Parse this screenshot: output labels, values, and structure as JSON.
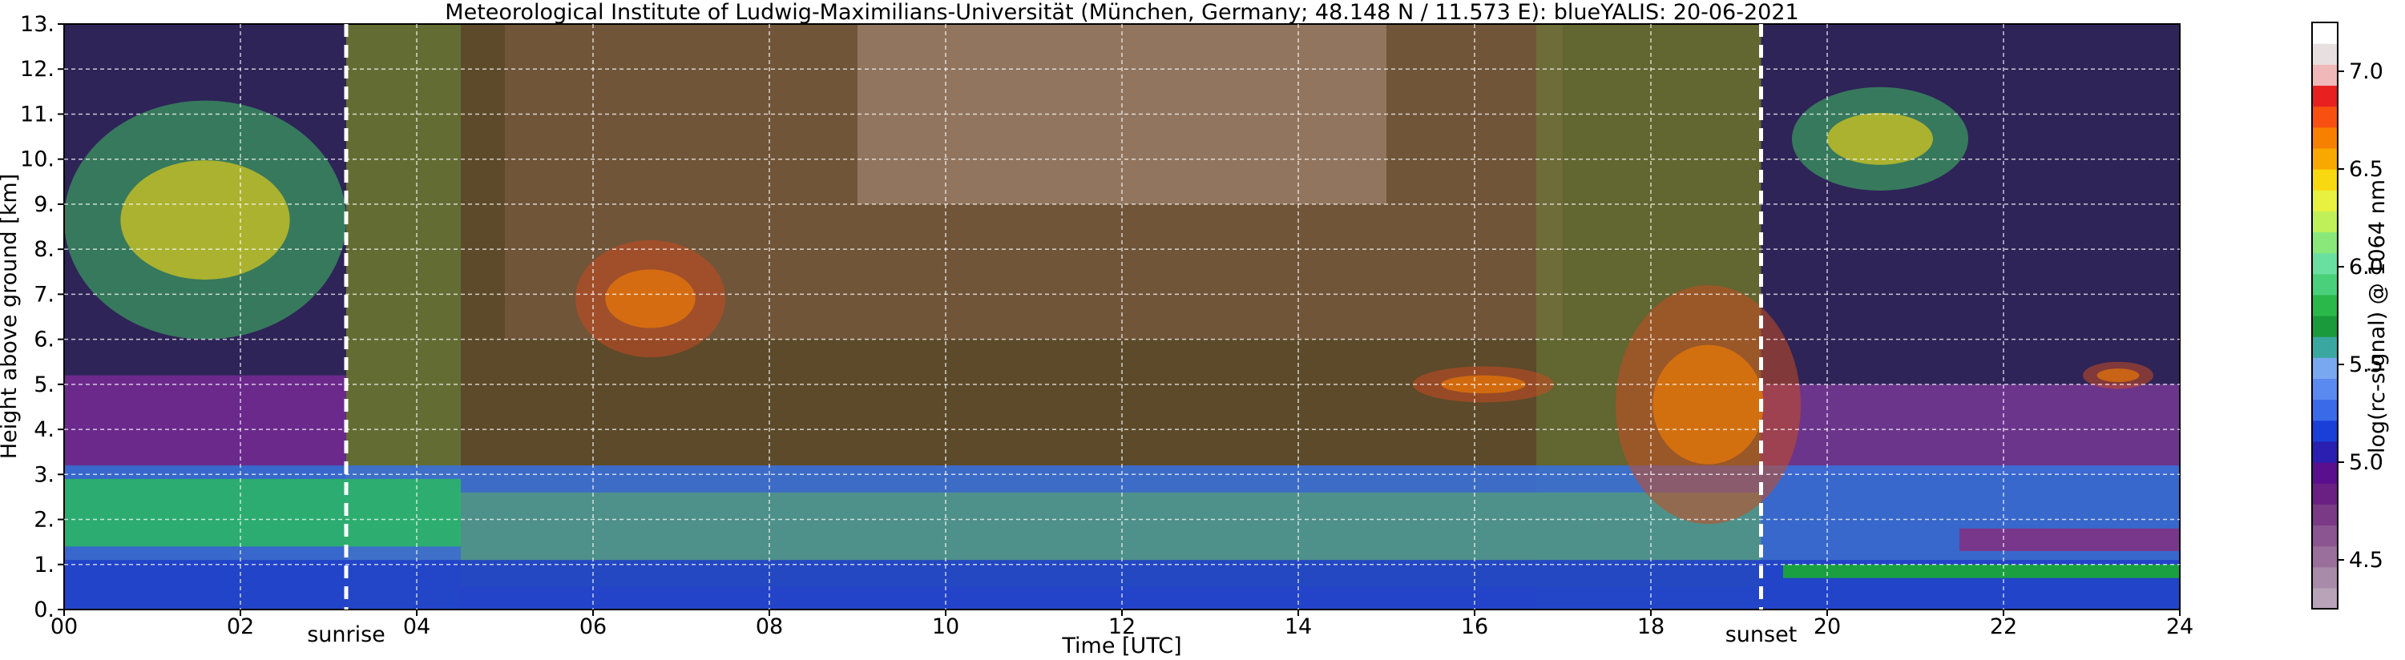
{
  "chart_data": {
    "type": "heatmap",
    "title": "Meteorological Institute of Ludwig-Maximilians-Universität (München, Germany; 48.148 N / 11.573 E):    blueYALIS: 20-06-2021",
    "xlabel": "Time [UTC]",
    "ylabel": "Height above ground [km]",
    "xlim": [
      0,
      24
    ],
    "ylim": [
      0,
      13
    ],
    "x_ticks": [
      0,
      2,
      4,
      6,
      8,
      10,
      12,
      14,
      16,
      18,
      20,
      22,
      24
    ],
    "x_tick_labels": [
      "00",
      "02",
      "04",
      "06",
      "08",
      "10",
      "12",
      "14",
      "16",
      "18",
      "20",
      "22",
      "24"
    ],
    "y_ticks": [
      0,
      1,
      2,
      3,
      4,
      5,
      6,
      7,
      8,
      9,
      10,
      11,
      12,
      13
    ],
    "y_tick_labels": [
      "0.",
      "1.",
      "2.",
      "3.",
      "4.",
      "5.",
      "6.",
      "7.",
      "8.",
      "9.",
      "10.",
      "11.",
      "12.",
      "13."
    ],
    "grid": true,
    "colorbar": {
      "label": "log(rc-signal) @ 1064 nm",
      "range": [
        4.25,
        7.25
      ],
      "ticks": [
        4.5,
        5.0,
        5.5,
        6.0,
        6.5,
        7.0
      ],
      "tick_labels": [
        "4.5",
        "5.0",
        "5.5",
        "6.0",
        "6.5",
        "7.0"
      ],
      "colors": [
        "#b8a3b9",
        "#a88ba9",
        "#9a6f9b",
        "#8a5590",
        "#7a3a86",
        "#6a1f82",
        "#5a0f8f",
        "#2a1fb0",
        "#1a3fd8",
        "#3a6ae8",
        "#5a8af0",
        "#7aa8f0",
        "#3aa8a0",
        "#1a9a3a",
        "#2ab84a",
        "#4ad07a",
        "#6ae0a0",
        "#8ae87a",
        "#bff05a",
        "#e8f040",
        "#f8d810",
        "#f8a800",
        "#f88000",
        "#f85010",
        "#e82020",
        "#f0b8b8",
        "#e8e0e0",
        "#ffffff"
      ]
    },
    "markers": [
      {
        "label": "sunrise",
        "x": 3.2
      },
      {
        "label": "sunset",
        "x": 19.25
      }
    ],
    "features": [
      {
        "kind": "cirrus",
        "x": [
          0.0,
          3.2
        ],
        "y": [
          6.0,
          11.3
        ]
      },
      {
        "kind": "cloud",
        "x": [
          5.8,
          7.5
        ],
        "y": [
          5.6,
          8.2
        ]
      },
      {
        "kind": "cloud",
        "x": [
          15.3,
          16.9
        ],
        "y": [
          4.6,
          5.4
        ]
      },
      {
        "kind": "cloud",
        "x": [
          17.6,
          19.7
        ],
        "y": [
          1.9,
          7.2
        ]
      },
      {
        "kind": "cirrus",
        "x": [
          19.6,
          21.6
        ],
        "y": [
          9.3,
          11.6
        ]
      },
      {
        "kind": "cloud",
        "x": [
          22.9,
          23.7
        ],
        "y": [
          4.9,
          5.5
        ]
      },
      {
        "kind": "boundary-layer",
        "x": [
          0.0,
          24.0
        ],
        "y": [
          0.0,
          3.2
        ]
      }
    ]
  }
}
